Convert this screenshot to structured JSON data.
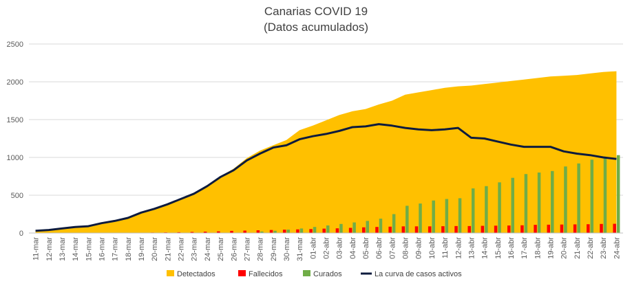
{
  "chart_data": {
    "type": "area",
    "title": "Canarias COVID 19",
    "subtitle": "(Datos acumulados)",
    "xlabel": "",
    "ylabel": "",
    "ylim": [
      0,
      2500
    ],
    "yticks": [
      0,
      500,
      1000,
      1500,
      2000,
      2500
    ],
    "grid": "horizontal",
    "legend": "bottom",
    "categories": [
      "11-mar",
      "12-mar",
      "13-mar",
      "14-mar",
      "15-mar",
      "16-mar",
      "17-mar",
      "18-mar",
      "19-mar",
      "20-mar",
      "21-mar",
      "22-mar",
      "23-mar",
      "24-mar",
      "25-mar",
      "26-mar",
      "27-mar",
      "28-mar",
      "29-mar",
      "30-mar",
      "31-mar",
      "01-abr",
      "02-abr",
      "03-abr",
      "04-abr",
      "05-abr",
      "06-abr",
      "07-abr",
      "08-abr",
      "09-abr",
      "10-abr",
      "11-abr",
      "12-abr",
      "13-abr",
      "14-abr",
      "15-abr",
      "16-abr",
      "17-abr",
      "18-abr",
      "19-abr",
      "20-abr",
      "21-abr",
      "22-abr",
      "23-abr",
      "24-abr"
    ],
    "series": [
      {
        "name": "Detectados",
        "kind": "area",
        "color": "#FFC000",
        "values": [
          30,
          40,
          60,
          80,
          90,
          130,
          160,
          200,
          270,
          320,
          390,
          460,
          530,
          630,
          750,
          850,
          990,
          1090,
          1160,
          1230,
          1360,
          1420,
          1490,
          1560,
          1610,
          1640,
          1700,
          1750,
          1830,
          1860,
          1890,
          1920,
          1940,
          1950,
          1970,
          1990,
          2010,
          2030,
          2050,
          2070,
          2080,
          2090,
          2110,
          2130,
          2140
        ]
      },
      {
        "name": "Fallecidos",
        "kind": "bar",
        "color": "#FF0000",
        "values": [
          1,
          1,
          1,
          1,
          1,
          1,
          1,
          2,
          4,
          6,
          8,
          10,
          14,
          18,
          22,
          28,
          32,
          36,
          40,
          44,
          48,
          52,
          58,
          62,
          68,
          75,
          80,
          84,
          88,
          88,
          88,
          90,
          92,
          92,
          95,
          97,
          99,
          102,
          108,
          110,
          112,
          114,
          116,
          120,
          122
        ]
      },
      {
        "name": "Curados",
        "kind": "bar",
        "color": "#70AD47",
        "values": [
          0,
          0,
          0,
          0,
          0,
          0,
          0,
          0,
          0,
          0,
          0,
          0,
          0,
          0,
          0,
          0,
          0,
          20,
          30,
          45,
          60,
          80,
          100,
          120,
          140,
          160,
          190,
          250,
          360,
          390,
          430,
          450,
          460,
          590,
          620,
          670,
          730,
          780,
          800,
          820,
          880,
          920,
          970,
          1000,
          1030
        ]
      },
      {
        "name": "La curva de casos activos",
        "kind": "line",
        "color": "#0D1B3E",
        "values": [
          30,
          40,
          60,
          80,
          90,
          130,
          160,
          200,
          270,
          320,
          380,
          450,
          520,
          620,
          740,
          830,
          960,
          1050,
          1130,
          1160,
          1240,
          1280,
          1310,
          1350,
          1400,
          1410,
          1440,
          1420,
          1390,
          1370,
          1360,
          1370,
          1390,
          1260,
          1250,
          1210,
          1170,
          1140,
          1140,
          1140,
          1080,
          1050,
          1030,
          1000,
          980
        ]
      }
    ]
  }
}
